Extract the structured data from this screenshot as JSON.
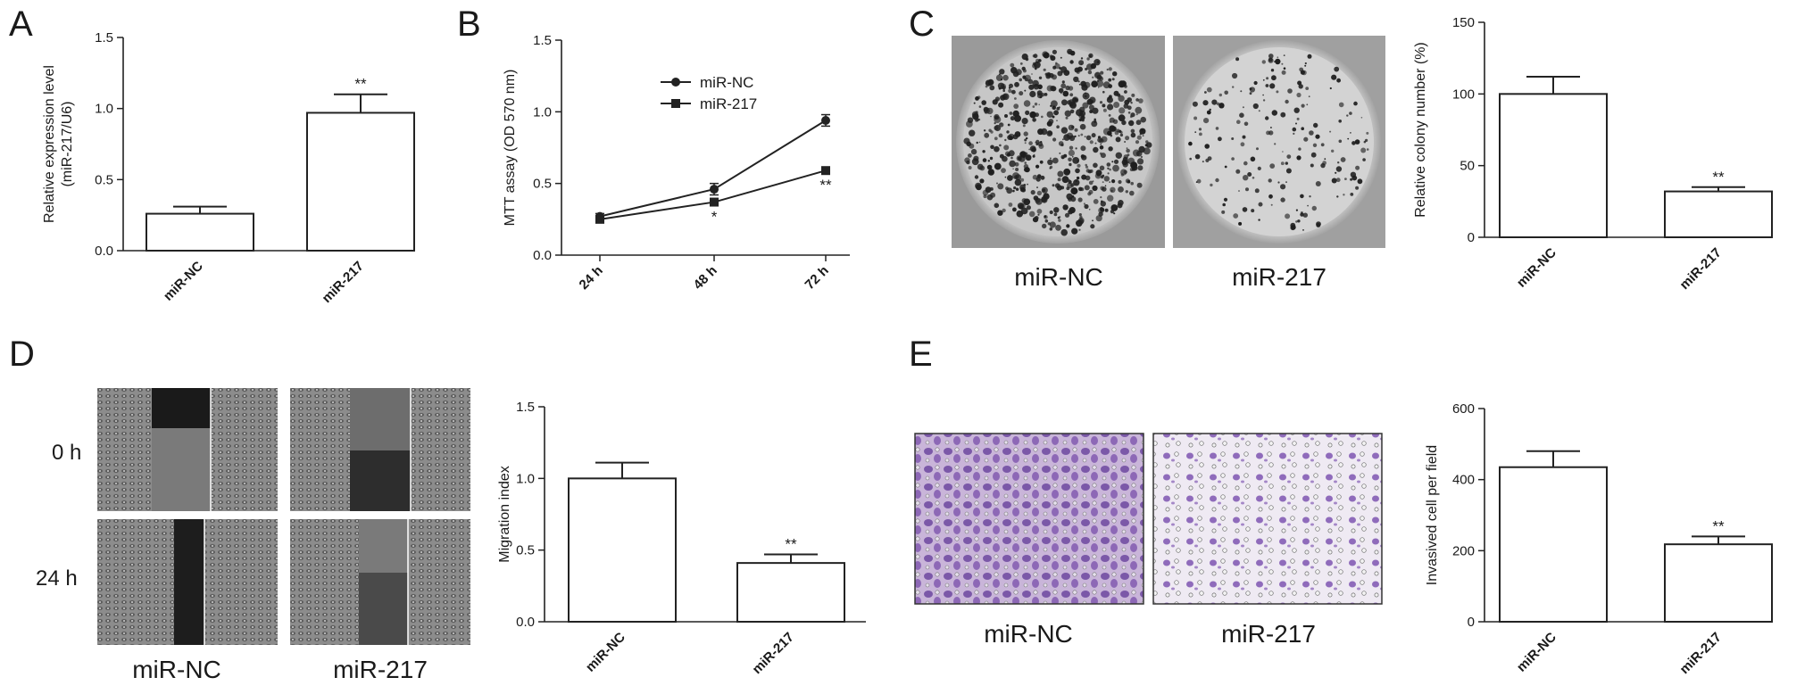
{
  "panel_letters": {
    "A": "A",
    "B": "B",
    "C": "C",
    "D": "D",
    "E": "E"
  },
  "images": {
    "colony": {
      "left_caption": "miR-NC",
      "right_caption": "miR-217"
    },
    "wound": {
      "row_labels": [
        "0 h",
        "24 h"
      ],
      "left_caption": "miR-NC",
      "right_caption": "miR-217"
    },
    "transwell": {
      "left_caption": "miR-NC",
      "right_caption": "miR-217"
    }
  },
  "chart_data": [
    {
      "panel": "A",
      "type": "bar",
      "categories": [
        "miR-NC",
        "miR-217"
      ],
      "values": [
        0.26,
        0.97
      ],
      "errors": [
        0.05,
        0.13
      ],
      "significance": [
        "",
        "**"
      ],
      "ylabel": "Relative expression level",
      "ylabel2": "(miR-217/U6)",
      "ylim": [
        0,
        1.5
      ],
      "yticks": [
        "0.0",
        "0.5",
        "1.0",
        "1.5"
      ],
      "yticks_values": [
        0,
        0.5,
        1.0,
        1.5
      ],
      "grid": false
    },
    {
      "panel": "B",
      "type": "line",
      "x": [
        "24 h",
        "48 h",
        "72 h"
      ],
      "series": [
        {
          "name": "miR-NC",
          "marker": "circle",
          "values": [
            0.27,
            0.46,
            0.94
          ],
          "errors": [
            0.02,
            0.04,
            0.04
          ]
        },
        {
          "name": "miR-217",
          "marker": "square",
          "values": [
            0.25,
            0.37,
            0.59
          ],
          "errors": [
            0.02,
            0.02,
            0.02
          ]
        }
      ],
      "significance": [
        "",
        "*",
        "**"
      ],
      "ylabel": "MTT assay (OD 570 nm)",
      "ylim": [
        0,
        1.5
      ],
      "yticks": [
        "0.0",
        "0.5",
        "1.0",
        "1.5"
      ],
      "yticks_values": [
        0,
        0.5,
        1.0,
        1.5
      ],
      "legend_position": "top-left",
      "grid": false
    },
    {
      "panel": "C",
      "type": "bar",
      "categories": [
        "miR-NC",
        "miR-217"
      ],
      "values": [
        100,
        32
      ],
      "errors": [
        12,
        3
      ],
      "significance": [
        "",
        "**"
      ],
      "ylabel": "Relative colony number (%)",
      "ylim": [
        0,
        150
      ],
      "yticks": [
        "0",
        "50",
        "100",
        "150"
      ],
      "yticks_values": [
        0,
        50,
        100,
        150
      ],
      "grid": false
    },
    {
      "panel": "D",
      "type": "bar",
      "categories": [
        "miR-NC",
        "miR-217"
      ],
      "values": [
        1.0,
        0.41
      ],
      "errors": [
        0.11,
        0.06
      ],
      "significance": [
        "",
        "**"
      ],
      "ylabel": "Migration index",
      "ylim": [
        0,
        1.5
      ],
      "yticks": [
        "0.0",
        "0.5",
        "1.0",
        "1.5"
      ],
      "yticks_values": [
        0,
        0.5,
        1.0,
        1.5
      ],
      "grid": false
    },
    {
      "panel": "E",
      "type": "bar",
      "categories": [
        "miR-NC",
        "miR-217"
      ],
      "values": [
        435,
        218
      ],
      "errors": [
        45,
        22
      ],
      "significance": [
        "",
        "**"
      ],
      "ylabel": "Invasived cell per field",
      "ylim": [
        0,
        600
      ],
      "yticks": [
        "0",
        "200",
        "400",
        "600"
      ],
      "yticks_values": [
        0,
        200,
        400,
        600
      ],
      "grid": false
    }
  ]
}
